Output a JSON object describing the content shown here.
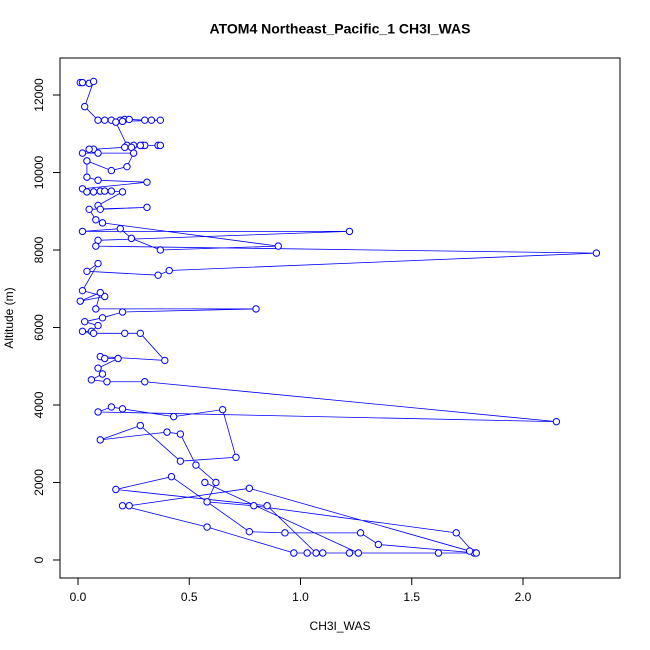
{
  "chart_data": {
    "type": "line",
    "title": "ATOM4 Northeast_Pacific_1 CH3I_WAS",
    "x_label": "CH3I_WAS",
    "y_label": "Altitude (m)",
    "color": "#0000ff",
    "xlim": [
      -0.081,
      2.436
    ],
    "ylim": [
      -465,
      12955
    ],
    "xticks": [
      {
        "value": 0,
        "label": "0.0"
      },
      0.5,
      {
        "value": 1,
        "label": "1.0"
      },
      1.5,
      {
        "value": 2,
        "label": "2.0"
      }
    ],
    "yticks": [
      0,
      2000,
      4000,
      6000,
      8000,
      10000,
      12000
    ],
    "x": [
      0.01,
      0.02,
      0.05,
      0.07,
      0.03,
      0.09,
      0.12,
      0.15,
      0.19,
      0.21,
      0.23,
      0.3,
      0.33,
      0.37,
      0.2,
      0.17,
      0.22,
      0.25,
      0.29,
      0.3,
      0.36,
      0.37,
      0.28,
      0.24,
      0.21,
      0.07,
      0.05,
      0.02,
      0.09,
      0.25,
      0.22,
      0.15,
      0.04,
      0.04,
      0.09,
      0.31,
      0.02,
      0.04,
      0.07,
      0.1,
      0.12,
      0.15,
      0.2,
      0.09,
      0.1,
      0.31,
      0.05,
      0.08,
      0.11,
      0.9,
      0.37,
      0.24,
      0.19,
      0.02,
      1.22,
      0.09,
      0.08,
      2.33,
      0.41,
      0.36,
      0.04,
      0.09,
      0.02,
      0.12,
      0.01,
      0.1,
      0.08,
      0.8,
      0.2,
      0.11,
      0.03,
      0.09,
      0.06,
      0.02,
      0.07,
      0.21,
      0.28,
      0.39,
      0.1,
      0.12,
      0.18,
      0.09,
      0.11,
      0.06,
      0.13,
      0.3,
      2.15,
      0.09,
      0.15,
      0.2,
      0.43,
      0.65,
      0.71,
      0.46,
      0.28,
      0.1,
      0.4,
      0.46,
      0.53,
      0.62,
      0.58,
      0.79,
      1.7,
      1.78,
      1.62,
      1.03,
      0.97,
      0.58,
      0.2,
      0.23,
      0.77,
      1.76,
      1.79,
      1.35,
      1.27,
      0.93,
      0.77,
      0.42,
      0.17,
      0.85,
      1.07,
      1.1,
      1.22,
      1.26,
      0.57
    ],
    "values": [
      12320,
      12320,
      12300,
      12350,
      11700,
      11350,
      11350,
      11350,
      11350,
      11370,
      11370,
      11350,
      11350,
      11350,
      11320,
      11300,
      10700,
      10700,
      10700,
      10700,
      10700,
      10700,
      10700,
      10650,
      10650,
      10600,
      10600,
      10500,
      10500,
      10500,
      10150,
      10050,
      10300,
      9880,
      9800,
      9750,
      9580,
      9500,
      9500,
      9520,
      9520,
      9520,
      9500,
      9150,
      9050,
      9100,
      9050,
      8780,
      8700,
      8100,
      8000,
      8300,
      8550,
      8480,
      8480,
      8250,
      8100,
      7920,
      7470,
      7350,
      7450,
      7650,
      6950,
      6800,
      6680,
      6900,
      6480,
      6480,
      6400,
      6250,
      6150,
      6050,
      5900,
      5900,
      5850,
      5850,
      5850,
      5150,
      5250,
      5200,
      5200,
      4950,
      4800,
      4650,
      4600,
      4600,
      3570,
      3820,
      3950,
      3900,
      3700,
      3880,
      2650,
      2550,
      3470,
      3100,
      3300,
      3250,
      2450,
      2000,
      1500,
      1400,
      700,
      180,
      180,
      180,
      180,
      850,
      1400,
      1400,
      1850,
      230,
      180,
      400,
      700,
      700,
      730,
      2150,
      1820,
      1400,
      180,
      180,
      180,
      180,
      2000
    ]
  }
}
